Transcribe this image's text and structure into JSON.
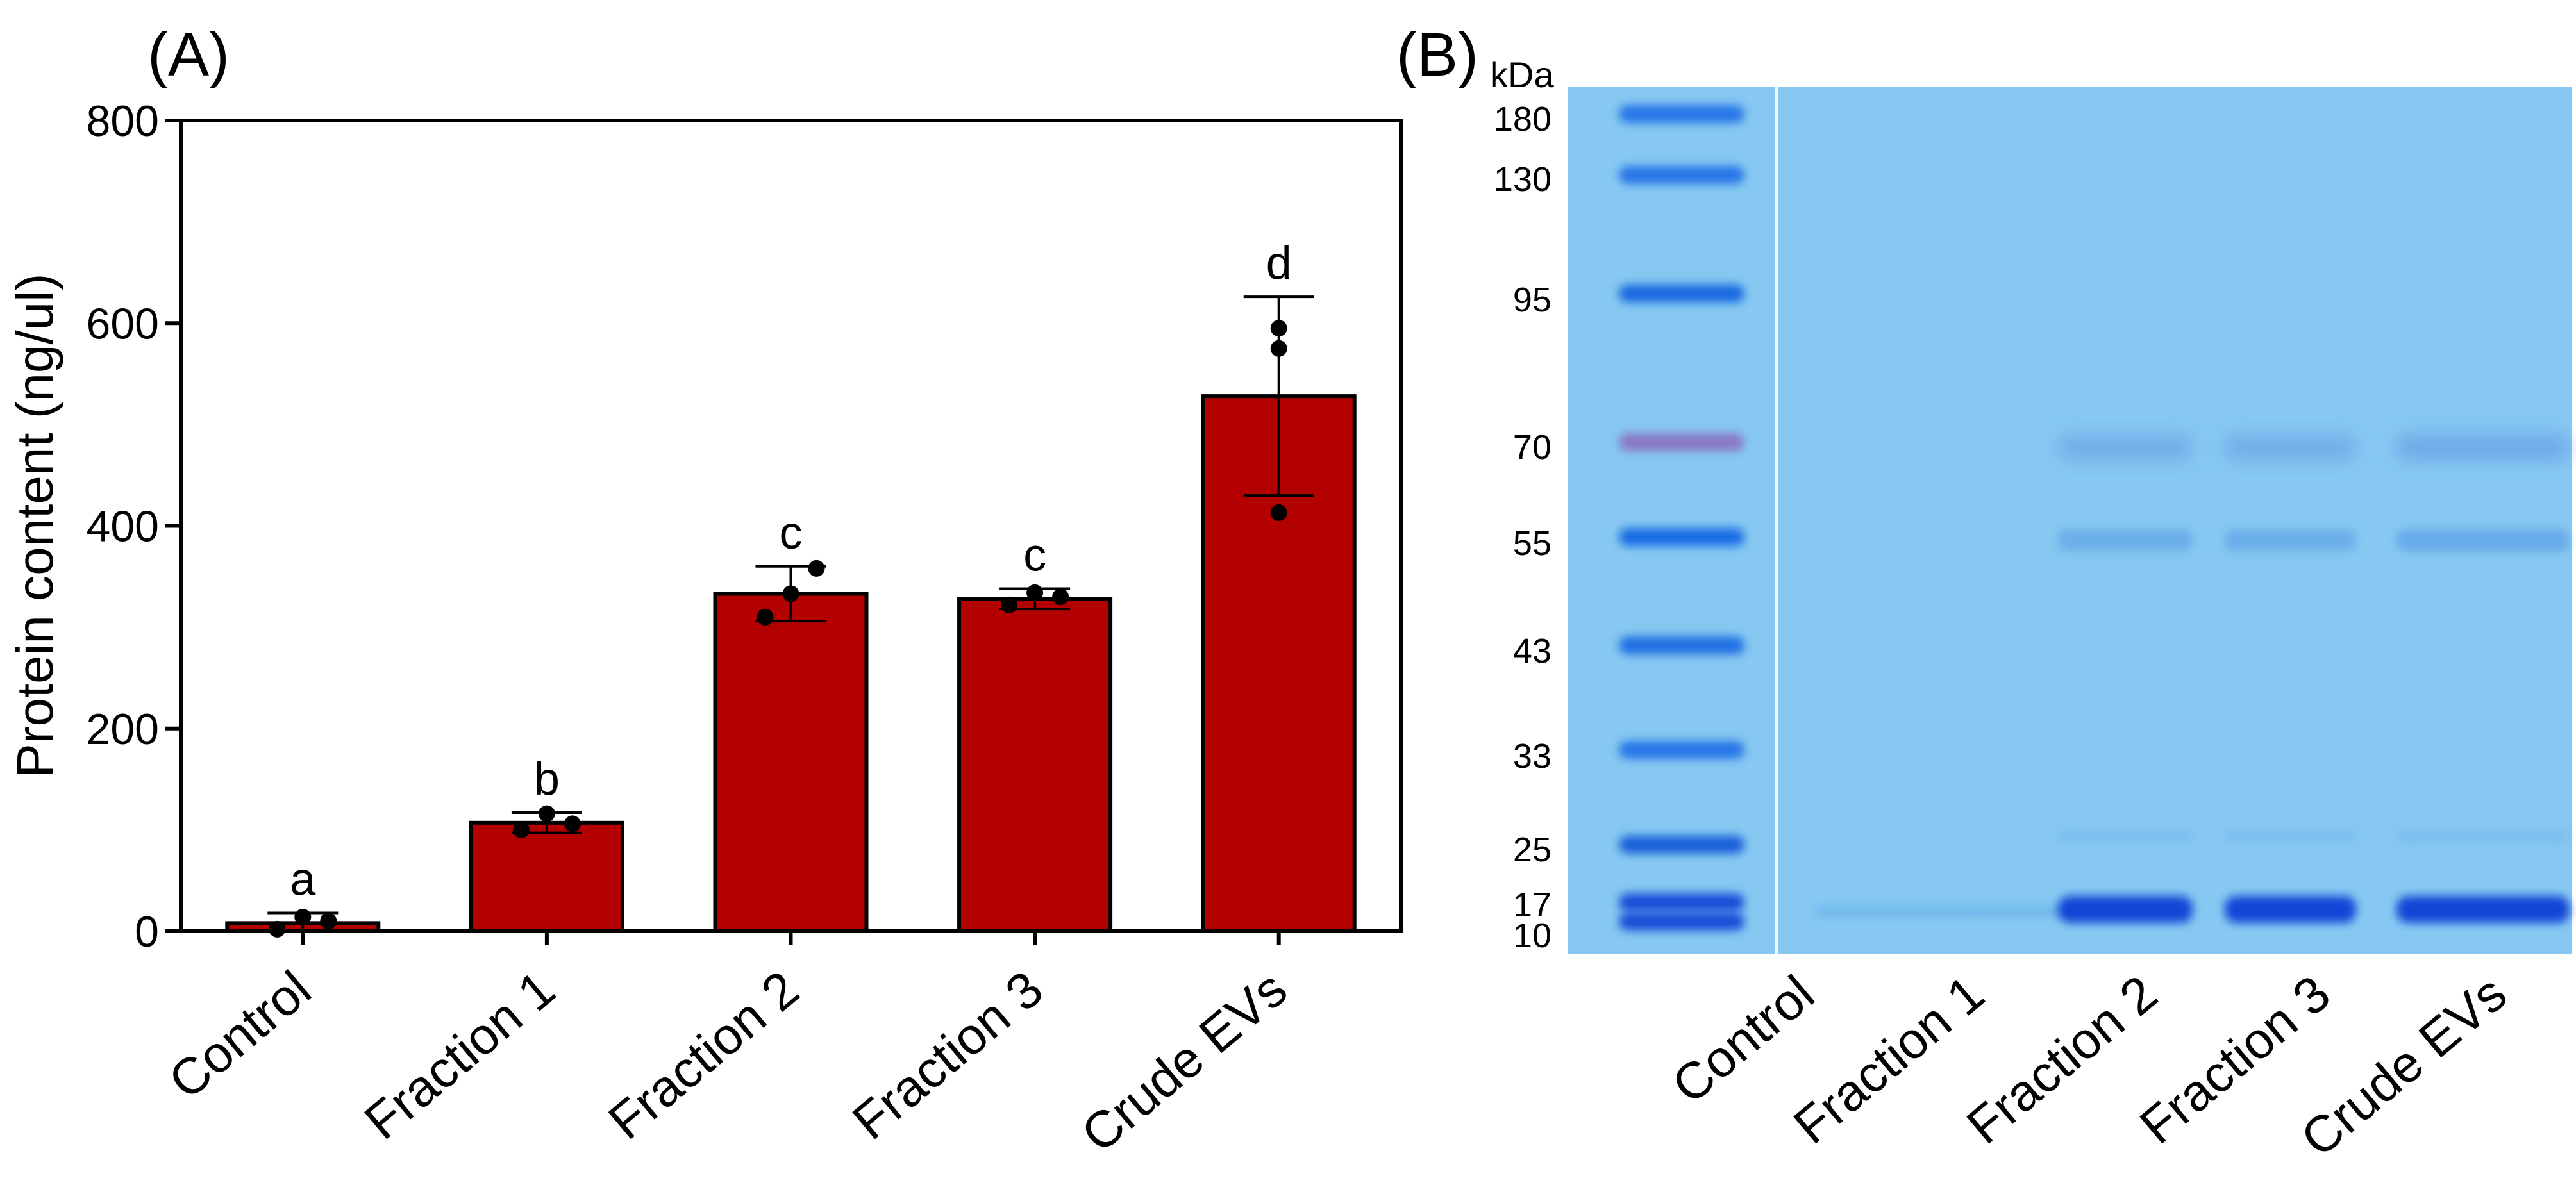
{
  "panel_a_label": "(A)",
  "panel_b_label": "(B)",
  "chart_data": [
    {
      "type": "bar",
      "title": "",
      "xlabel": "",
      "ylabel": "Protein content (ng/ul)",
      "ylim": [
        0,
        800
      ],
      "yticks": [
        0,
        200,
        400,
        600,
        800
      ],
      "categories": [
        "Control",
        "Fraction 1",
        "Fraction 2",
        "Fraction 3",
        "Crude EVs"
      ],
      "values": [
        8,
        107,
        333,
        328,
        528
      ],
      "error_sd": [
        10,
        10,
        27,
        10,
        98
      ],
      "points": [
        [
          2,
          14,
          10
        ],
        [
          100,
          116,
          106
        ],
        [
          310,
          333,
          358
        ],
        [
          322,
          334,
          330
        ],
        [
          413,
          575,
          595
        ]
      ],
      "significance_letters": [
        "a",
        "b",
        "c",
        "c",
        "d"
      ],
      "bar_color": "#b30000",
      "grid": false
    },
    {
      "type": "gel",
      "unit_label": "kDa",
      "marker_kda": [
        "180",
        "130",
        "95",
        "70",
        "55",
        "43",
        "33",
        "25",
        "17",
        "10"
      ],
      "lanes": [
        "Control",
        "Fraction 1",
        "Fraction 2",
        "Fraction 3",
        "Crude EVs"
      ],
      "gel_color": "#86c8f1",
      "band_color": "#0a3fd6",
      "ladder_color": "#1f6fe6"
    }
  ]
}
